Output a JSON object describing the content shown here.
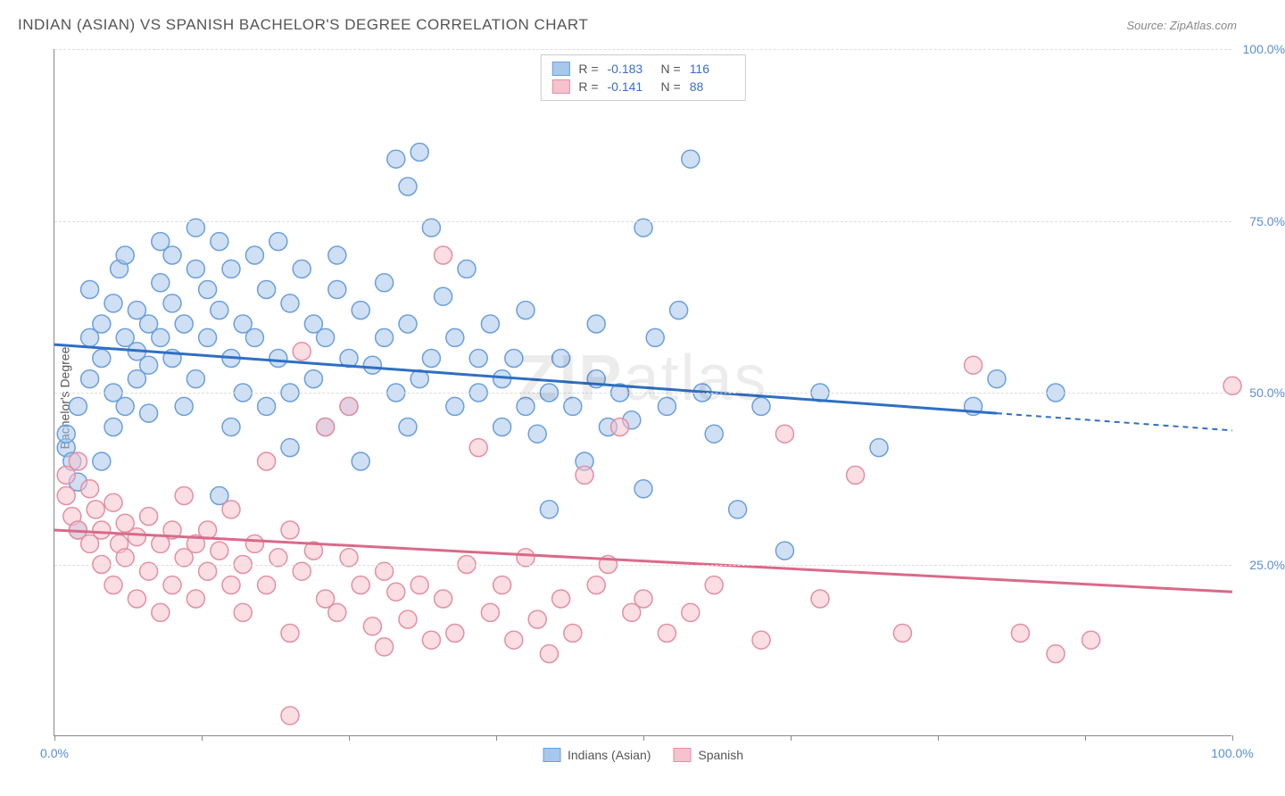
{
  "title": "INDIAN (ASIAN) VS SPANISH BACHELOR'S DEGREE CORRELATION CHART",
  "source": "Source: ZipAtlas.com",
  "watermark_bold": "ZIP",
  "watermark_light": "atlas",
  "y_axis_label": "Bachelor's Degree",
  "chart": {
    "type": "scatter",
    "xlim": [
      0,
      100
    ],
    "ylim": [
      0,
      100
    ],
    "x_ticks": [
      0,
      12.5,
      25,
      37.5,
      50,
      62.5,
      75,
      87.5,
      100
    ],
    "x_tick_labels": {
      "0": "0.0%",
      "100": "100.0%"
    },
    "y_gridlines": [
      25,
      50,
      75,
      100
    ],
    "y_tick_labels": {
      "25": "25.0%",
      "50": "50.0%",
      "75": "75.0%",
      "100": "100.0%"
    },
    "background_color": "#ffffff",
    "grid_color": "#dddddd",
    "axis_color": "#888888",
    "marker_radius": 10,
    "marker_opacity": 0.55,
    "line_width": 3,
    "series": [
      {
        "name": "Indians (Asian)",
        "fill": "#a7c7ec",
        "stroke": "#6b9fdc",
        "line_color": "#2f6fc2",
        "R_label": "R =",
        "R": "-0.183",
        "N_label": "N =",
        "N": "116",
        "trend": {
          "x1": 0,
          "y1": 57,
          "x2": 80,
          "y2": 47,
          "dash_x2": 100,
          "dash_y2": 44.5
        },
        "points": [
          [
            1,
            42
          ],
          [
            1,
            44
          ],
          [
            1.5,
            40
          ],
          [
            2,
            37
          ],
          [
            2,
            30
          ],
          [
            2,
            48
          ],
          [
            3,
            52
          ],
          [
            3,
            65
          ],
          [
            3,
            58
          ],
          [
            4,
            55
          ],
          [
            4,
            60
          ],
          [
            4,
            40
          ],
          [
            5,
            63
          ],
          [
            5,
            50
          ],
          [
            5,
            45
          ],
          [
            5.5,
            68
          ],
          [
            6,
            70
          ],
          [
            6,
            58
          ],
          [
            6,
            48
          ],
          [
            7,
            56
          ],
          [
            7,
            62
          ],
          [
            7,
            52
          ],
          [
            8,
            60
          ],
          [
            8,
            54
          ],
          [
            8,
            47
          ],
          [
            9,
            66
          ],
          [
            9,
            72
          ],
          [
            9,
            58
          ],
          [
            10,
            63
          ],
          [
            10,
            55
          ],
          [
            10,
            70
          ],
          [
            11,
            48
          ],
          [
            11,
            60
          ],
          [
            12,
            68
          ],
          [
            12,
            52
          ],
          [
            12,
            74
          ],
          [
            13,
            65
          ],
          [
            13,
            58
          ],
          [
            14,
            72
          ],
          [
            14,
            62
          ],
          [
            14,
            35
          ],
          [
            15,
            68
          ],
          [
            15,
            55
          ],
          [
            15,
            45
          ],
          [
            16,
            60
          ],
          [
            16,
            50
          ],
          [
            17,
            70
          ],
          [
            17,
            58
          ],
          [
            18,
            65
          ],
          [
            18,
            48
          ],
          [
            19,
            72
          ],
          [
            19,
            55
          ],
          [
            20,
            63
          ],
          [
            20,
            50
          ],
          [
            20,
            42
          ],
          [
            21,
            68
          ],
          [
            22,
            60
          ],
          [
            22,
            52
          ],
          [
            23,
            58
          ],
          [
            23,
            45
          ],
          [
            24,
            65
          ],
          [
            24,
            70
          ],
          [
            25,
            55
          ],
          [
            25,
            48
          ],
          [
            26,
            62
          ],
          [
            26,
            40
          ],
          [
            27,
            54
          ],
          [
            28,
            66
          ],
          [
            28,
            58
          ],
          [
            29,
            50
          ],
          [
            29,
            84
          ],
          [
            30,
            60
          ],
          [
            30,
            45
          ],
          [
            30,
            80
          ],
          [
            31,
            85
          ],
          [
            31,
            52
          ],
          [
            32,
            55
          ],
          [
            32,
            74
          ],
          [
            33,
            64
          ],
          [
            34,
            48
          ],
          [
            34,
            58
          ],
          [
            35,
            68
          ],
          [
            36,
            50
          ],
          [
            36,
            55
          ],
          [
            37,
            60
          ],
          [
            38,
            45
          ],
          [
            38,
            52
          ],
          [
            39,
            55
          ],
          [
            40,
            48
          ],
          [
            40,
            62
          ],
          [
            41,
            44
          ],
          [
            42,
            50
          ],
          [
            42,
            33
          ],
          [
            43,
            55
          ],
          [
            44,
            48
          ],
          [
            45,
            40
          ],
          [
            46,
            52
          ],
          [
            46,
            60
          ],
          [
            47,
            45
          ],
          [
            48,
            50
          ],
          [
            49,
            46
          ],
          [
            50,
            74
          ],
          [
            50,
            36
          ],
          [
            51,
            58
          ],
          [
            52,
            48
          ],
          [
            53,
            62
          ],
          [
            54,
            84
          ],
          [
            55,
            50
          ],
          [
            56,
            44
          ],
          [
            58,
            33
          ],
          [
            60,
            48
          ],
          [
            62,
            27
          ],
          [
            65,
            50
          ],
          [
            70,
            42
          ],
          [
            78,
            48
          ],
          [
            80,
            52
          ],
          [
            85,
            50
          ]
        ]
      },
      {
        "name": "Spanish",
        "fill": "#f5c2cd",
        "stroke": "#e38fa3",
        "line_color": "#d96a8a",
        "R_label": "R =",
        "R": "-0.141",
        "N_label": "N =",
        "N": "88",
        "trend": {
          "x1": 0,
          "y1": 30,
          "x2": 100,
          "y2": 21
        },
        "points": [
          [
            1,
            38
          ],
          [
            1,
            35
          ],
          [
            1.5,
            32
          ],
          [
            2,
            40
          ],
          [
            2,
            30
          ],
          [
            3,
            36
          ],
          [
            3,
            28
          ],
          [
            3.5,
            33
          ],
          [
            4,
            30
          ],
          [
            4,
            25
          ],
          [
            5,
            34
          ],
          [
            5,
            22
          ],
          [
            5.5,
            28
          ],
          [
            6,
            31
          ],
          [
            6,
            26
          ],
          [
            7,
            29
          ],
          [
            7,
            20
          ],
          [
            8,
            32
          ],
          [
            8,
            24
          ],
          [
            9,
            28
          ],
          [
            9,
            18
          ],
          [
            10,
            30
          ],
          [
            10,
            22
          ],
          [
            11,
            26
          ],
          [
            11,
            35
          ],
          [
            12,
            28
          ],
          [
            12,
            20
          ],
          [
            13,
            24
          ],
          [
            13,
            30
          ],
          [
            14,
            27
          ],
          [
            15,
            22
          ],
          [
            15,
            33
          ],
          [
            16,
            25
          ],
          [
            16,
            18
          ],
          [
            17,
            28
          ],
          [
            18,
            40
          ],
          [
            18,
            22
          ],
          [
            19,
            26
          ],
          [
            20,
            30
          ],
          [
            20,
            15
          ],
          [
            20,
            3
          ],
          [
            21,
            24
          ],
          [
            21,
            56
          ],
          [
            22,
            27
          ],
          [
            23,
            20
          ],
          [
            23,
            45
          ],
          [
            24,
            18
          ],
          [
            25,
            26
          ],
          [
            25,
            48
          ],
          [
            26,
            22
          ],
          [
            27,
            16
          ],
          [
            28,
            24
          ],
          [
            28,
            13
          ],
          [
            29,
            21
          ],
          [
            30,
            17
          ],
          [
            31,
            22
          ],
          [
            32,
            14
          ],
          [
            33,
            70
          ],
          [
            33,
            20
          ],
          [
            34,
            15
          ],
          [
            35,
            25
          ],
          [
            36,
            42
          ],
          [
            37,
            18
          ],
          [
            38,
            22
          ],
          [
            39,
            14
          ],
          [
            40,
            26
          ],
          [
            41,
            17
          ],
          [
            42,
            12
          ],
          [
            43,
            20
          ],
          [
            44,
            15
          ],
          [
            45,
            38
          ],
          [
            46,
            22
          ],
          [
            47,
            25
          ],
          [
            48,
            45
          ],
          [
            49,
            18
          ],
          [
            50,
            20
          ],
          [
            52,
            15
          ],
          [
            54,
            18
          ],
          [
            56,
            22
          ],
          [
            60,
            14
          ],
          [
            62,
            44
          ],
          [
            65,
            20
          ],
          [
            68,
            38
          ],
          [
            72,
            15
          ],
          [
            78,
            54
          ],
          [
            82,
            15
          ],
          [
            85,
            12
          ],
          [
            88,
            14
          ],
          [
            100,
            51
          ]
        ]
      }
    ],
    "legend_bottom": [
      {
        "label": "Indians (Asian)",
        "fill": "#a7c7ec",
        "stroke": "#6b9fdc"
      },
      {
        "label": "Spanish",
        "fill": "#f5c2cd",
        "stroke": "#e38fa3"
      }
    ]
  }
}
